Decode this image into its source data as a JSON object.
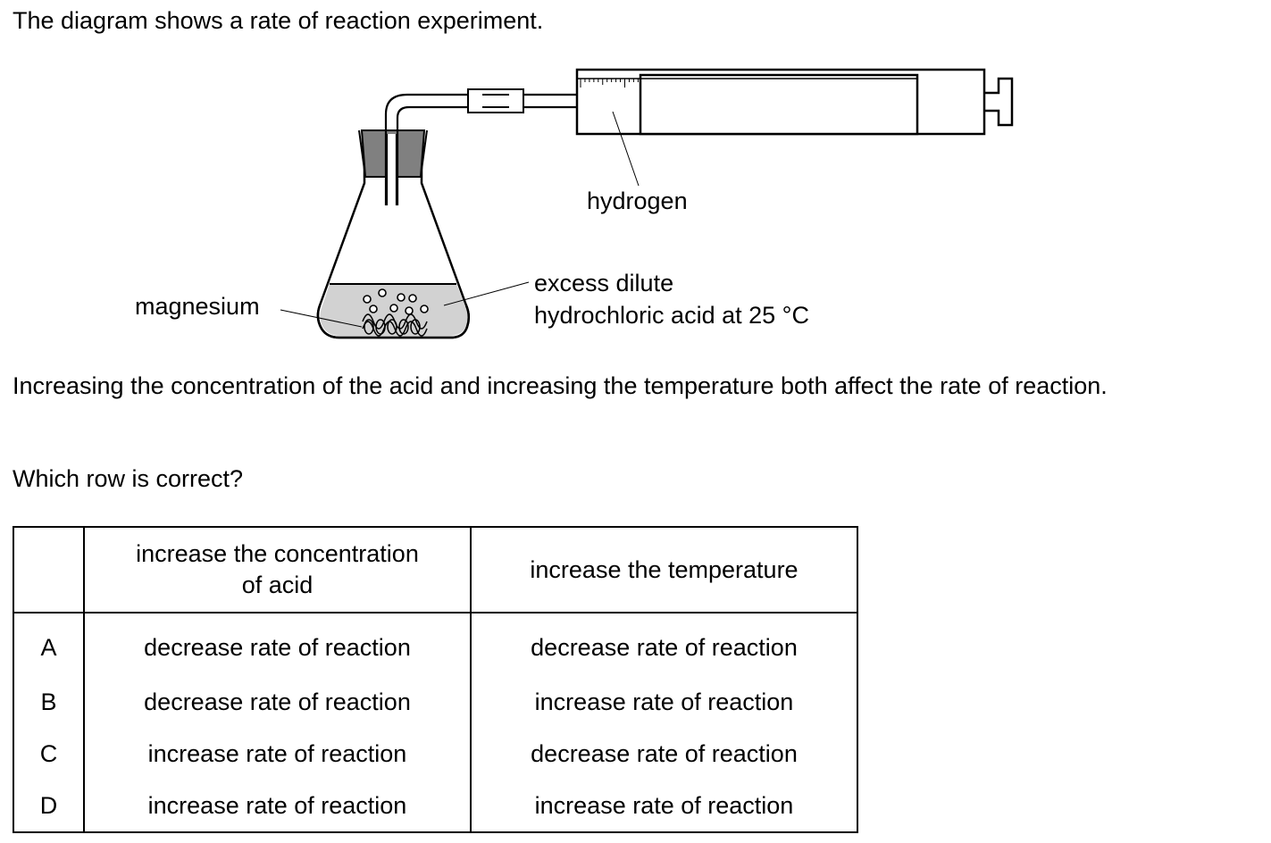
{
  "intro": "The diagram shows a rate of reaction experiment.",
  "diagram": {
    "label_hydrogen": "hydrogen",
    "label_acid_line1": "excess dilute",
    "label_acid_line2": "hydrochloric acid at 25 °C",
    "label_magnesium": "magnesium"
  },
  "statement": "Increasing the concentration of the acid and increasing the temperature both affect the rate of reaction.",
  "question": "Which row is correct?",
  "table": {
    "header_col1_line1": "increase the concentration",
    "header_col1_line2": "of acid",
    "header_col2": "increase the temperature",
    "rows": [
      {
        "letter": "A",
        "conc": "decrease rate of reaction",
        "temp": "decrease rate of reaction"
      },
      {
        "letter": "B",
        "conc": "decrease rate of reaction",
        "temp": "increase rate of reaction"
      },
      {
        "letter": "C",
        "conc": "increase rate of reaction",
        "temp": "decrease rate of reaction"
      },
      {
        "letter": "D",
        "conc": "increase rate of reaction",
        "temp": "increase rate of reaction"
      }
    ]
  }
}
